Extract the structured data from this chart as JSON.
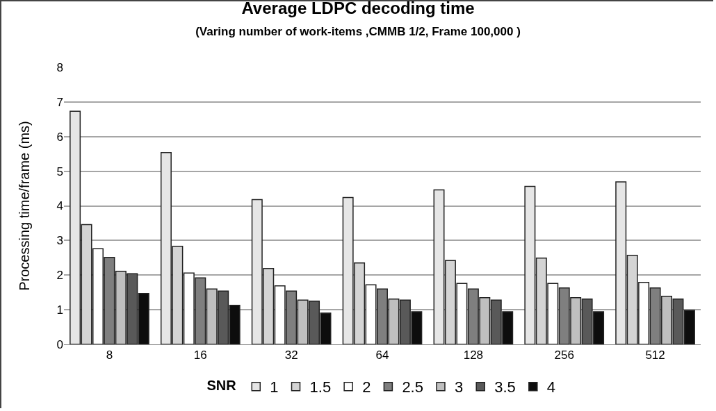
{
  "chart_data": {
    "type": "bar",
    "title": "Average LDPC decoding time",
    "subtitle": "(Varing number of work-items ,CMMB 1/2, Frame 100,000 )",
    "ylabel": "Processing time/frame (ms)",
    "legend_title": "SNR",
    "categories": [
      "8",
      "16",
      "32",
      "64",
      "128",
      "256",
      "512"
    ],
    "series": [
      {
        "name": "1",
        "color": "#e6e6e6",
        "values": [
          6.73,
          5.54,
          4.18,
          4.24,
          4.46,
          4.56,
          4.69
        ]
      },
      {
        "name": "1.5",
        "color": "#d4d4d4",
        "values": [
          3.46,
          2.83,
          2.19,
          2.35,
          2.42,
          2.49,
          2.57
        ]
      },
      {
        "name": "2",
        "color": "#ffffff",
        "values": [
          2.76,
          2.06,
          1.69,
          1.72,
          1.76,
          1.76,
          1.79
        ]
      },
      {
        "name": "2.5",
        "color": "#7f7f7f",
        "values": [
          2.51,
          1.92,
          1.54,
          1.6,
          1.6,
          1.63,
          1.63
        ]
      },
      {
        "name": "3",
        "color": "#bfbfbf",
        "values": [
          2.11,
          1.6,
          1.28,
          1.31,
          1.35,
          1.35,
          1.39
        ]
      },
      {
        "name": "3.5",
        "color": "#595959",
        "values": [
          2.04,
          1.54,
          1.25,
          1.28,
          1.28,
          1.31,
          1.31
        ]
      },
      {
        "name": "4",
        "color": "#0d0d0d",
        "values": [
          1.47,
          1.13,
          0.9,
          0.94,
          0.94,
          0.94,
          0.98
        ]
      }
    ],
    "ylim": [
      0,
      8
    ],
    "yticks": [
      0,
      1,
      2,
      3,
      4,
      5,
      6,
      7,
      8
    ],
    "grid": "y",
    "legend": "bottom"
  }
}
